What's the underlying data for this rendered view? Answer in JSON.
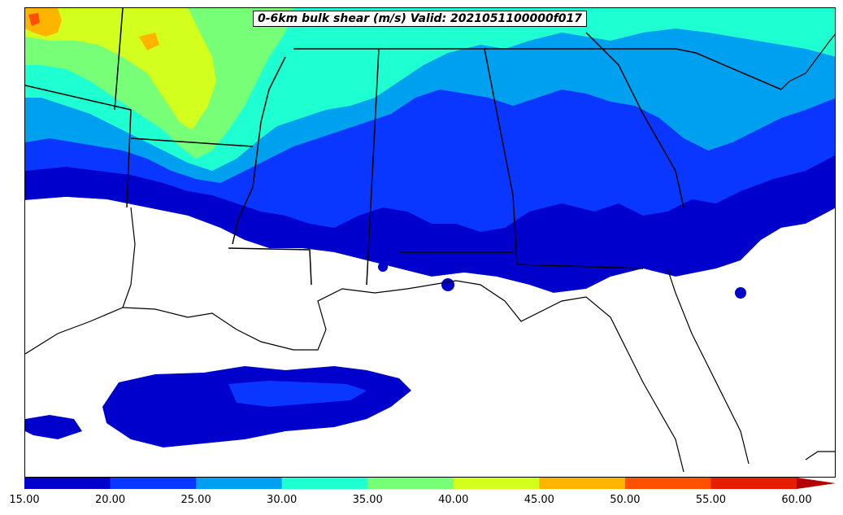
{
  "title": "0-6km bulk shear (m/s) Valid: 2021051100000f017",
  "colorbar": {
    "tick_labels": [
      "15.00",
      "20.00",
      "25.00",
      "30.00",
      "35.00",
      "40.00",
      "45.00",
      "50.00",
      "55.00",
      "60.00"
    ],
    "colors": [
      "#0000cd",
      "#0a37ff",
      "#00a0f0",
      "#1effd2",
      "#78ff78",
      "#d2ff1e",
      "#ffb400",
      "#ff5000",
      "#e61e00",
      "#b40000"
    ],
    "extend": "max"
  },
  "legend_values": [
    15,
    20,
    25,
    30,
    35,
    40,
    45,
    50,
    55,
    60
  ],
  "map": {
    "field": "0-6km bulk shear",
    "units": "m/s",
    "region": "US Southeast / Gulf Coast",
    "background": "#ffffff",
    "boundary_color": "#000000"
  }
}
